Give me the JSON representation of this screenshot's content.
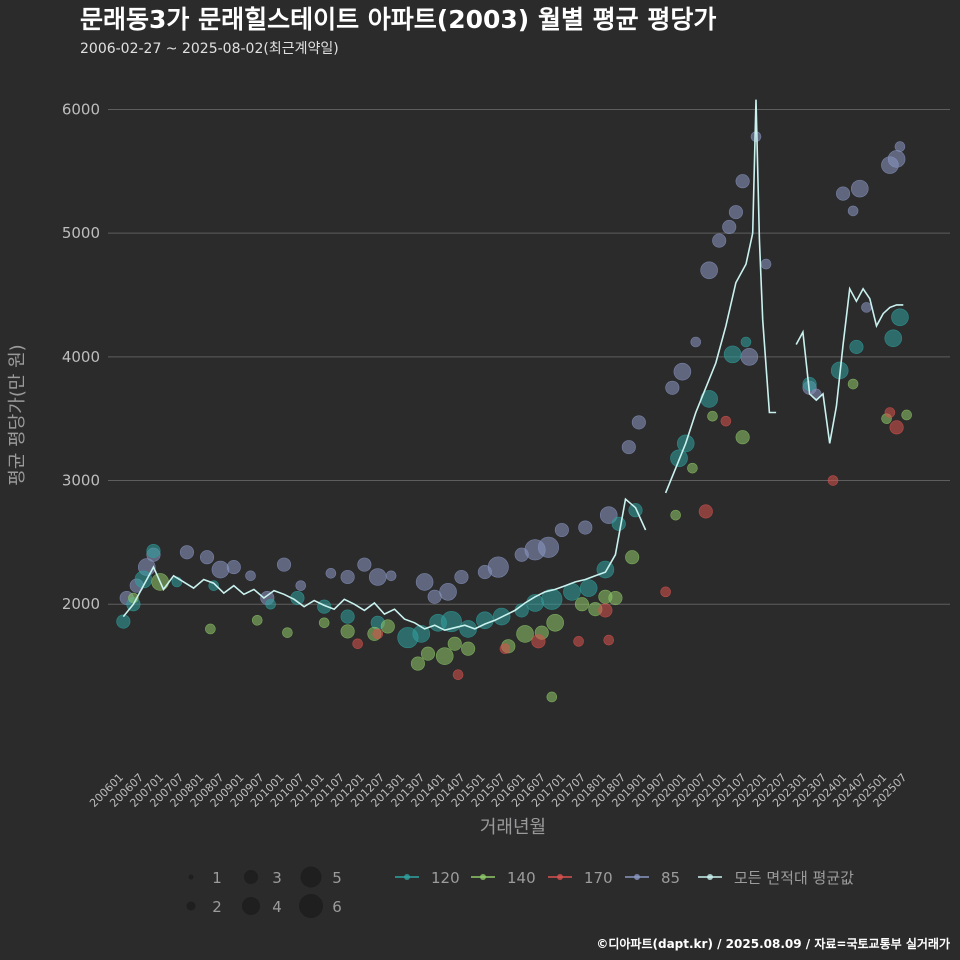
{
  "header": {
    "title": "문래동3가 문래힐스테이트 아파트(2003) 월별 평균 평당가",
    "subtitle": "2006-02-27 ~ 2025-08-02(최근계약일)"
  },
  "caption": "©디아파트(dapt.kr) / 2025.08.09 / 자료=국토교통부 실거래가",
  "colors": {
    "background": "#2b2b2c",
    "grid": "#5e5e5e",
    "s120": "#2fa3a0",
    "s140": "#8fc968",
    "s170": "#d9534f",
    "s85": "#8a97c2",
    "avg": "#c9f2ef"
  },
  "legend": {
    "size_labels": [
      "1",
      "2",
      "3",
      "4",
      "5",
      "6"
    ],
    "series_labels": [
      "120",
      "140",
      "170",
      "85",
      "모든 면적대 평균값"
    ]
  },
  "chart_data": {
    "type": "line",
    "xlabel": "거래년월",
    "ylabel": "평균 평당가(만 원)",
    "ylim": [
      700,
      6400
    ],
    "xlim": [
      "2006-01",
      "2025-09"
    ],
    "yticks": [
      2000,
      3000,
      4000,
      5000,
      6000
    ],
    "ytick_labels": [
      "2000",
      "3000",
      "4000",
      "5000",
      "6000"
    ],
    "xtick_labels": [
      "200601",
      "200607",
      "200701",
      "200707",
      "200801",
      "200807",
      "200901",
      "200907",
      "201001",
      "201007",
      "201101",
      "201107",
      "201201",
      "201207",
      "201301",
      "201307",
      "201401",
      "201407",
      "201501",
      "201507",
      "201601",
      "201607",
      "201701",
      "201707",
      "201801",
      "201807",
      "201901",
      "201907",
      "202001",
      "202007",
      "202101",
      "202107",
      "202201",
      "202207",
      "202301",
      "202307",
      "202401",
      "202407",
      "202501",
      "202507"
    ],
    "grid": true,
    "legend_position": "bottom",
    "average_line": {
      "name": "모든 면적대 평균값",
      "x": [
        "2006-02",
        "2006-05",
        "2006-08",
        "2006-11",
        "2007-02",
        "2007-05",
        "2007-08",
        "2007-11",
        "2008-02",
        "2008-05",
        "2008-08",
        "2008-11",
        "2009-02",
        "2009-05",
        "2009-08",
        "2009-11",
        "2010-02",
        "2010-05",
        "2010-08",
        "2010-11",
        "2011-02",
        "2011-05",
        "2011-08",
        "2011-11",
        "2012-02",
        "2012-05",
        "2012-08",
        "2012-11",
        "2013-02",
        "2013-05",
        "2013-08",
        "2013-11",
        "2014-02",
        "2014-05",
        "2014-08",
        "2014-11",
        "2015-02",
        "2015-05",
        "2015-08",
        "2015-11",
        "2016-02",
        "2016-05",
        "2016-08",
        "2016-11",
        "2017-02",
        "2017-05",
        "2017-08",
        "2017-11",
        "2018-02",
        "2018-05",
        "2018-08",
        "2018-11",
        "2019-02",
        "2019-05",
        "2019-08",
        "2019-11",
        "2020-02",
        "2020-05",
        "2020-08",
        "2020-11",
        "2021-02",
        "2021-05",
        "2021-08",
        "2021-10",
        "2021-11",
        "2021-12",
        "2022-01",
        "2022-03",
        "2022-05",
        "2022-06",
        "2022-11",
        "2023-01",
        "2023-03",
        "2023-05",
        "2023-07",
        "2023-09",
        "2023-11",
        "2024-01",
        "2024-03",
        "2024-05",
        "2024-07",
        "2024-09",
        "2024-11",
        "2025-01",
        "2025-03",
        "2025-05",
        "2025-07"
      ],
      "y": [
        1900,
        2000,
        2150,
        2300,
        2120,
        2230,
        2180,
        2130,
        2200,
        2170,
        2090,
        2150,
        2080,
        2120,
        2050,
        2110,
        2080,
        2040,
        1980,
        2030,
        1990,
        1960,
        2040,
        2000,
        1950,
        2010,
        1920,
        1960,
        1880,
        1850,
        1800,
        1830,
        1790,
        1810,
        1830,
        1800,
        1840,
        1870,
        1910,
        1950,
        2010,
        2060,
        2100,
        2120,
        2150,
        2180,
        2200,
        2230,
        2260,
        2400,
        2850,
        2780,
        2600,
        null,
        2900,
        3100,
        3300,
        3550,
        3750,
        3950,
        4250,
        4600,
        4750,
        5000,
        6080,
        4950,
        4300,
        3550,
        3550,
        null,
        4100,
        4200,
        3700,
        3650,
        3700,
        3300,
        3600,
        4100,
        4550,
        4450,
        4550,
        4470,
        4250,
        4350,
        4400,
        4420,
        4420
      ],
      "null_note": ""
    },
    "series": [
      {
        "name": "85",
        "color": "#8a97c2",
        "points": [
          {
            "x": "2006-03",
            "y": 2050,
            "s": 3
          },
          {
            "x": "2006-06",
            "y": 2150,
            "s": 3
          },
          {
            "x": "2006-09",
            "y": 2300,
            "s": 4
          },
          {
            "x": "2006-11",
            "y": 2400,
            "s": 3
          },
          {
            "x": "2007-09",
            "y": 2420,
            "s": 3
          },
          {
            "x": "2008-03",
            "y": 2380,
            "s": 3
          },
          {
            "x": "2008-07",
            "y": 2280,
            "s": 4
          },
          {
            "x": "2008-11",
            "y": 2300,
            "s": 3
          },
          {
            "x": "2009-04",
            "y": 2230,
            "s": 2
          },
          {
            "x": "2009-09",
            "y": 2050,
            "s": 3
          },
          {
            "x": "2010-02",
            "y": 2320,
            "s": 3
          },
          {
            "x": "2010-07",
            "y": 2150,
            "s": 2
          },
          {
            "x": "2011-04",
            "y": 2250,
            "s": 2
          },
          {
            "x": "2011-09",
            "y": 2220,
            "s": 3
          },
          {
            "x": "2012-02",
            "y": 2320,
            "s": 3
          },
          {
            "x": "2012-06",
            "y": 2220,
            "s": 4
          },
          {
            "x": "2012-10",
            "y": 2230,
            "s": 2
          },
          {
            "x": "2013-08",
            "y": 2180,
            "s": 4
          },
          {
            "x": "2013-11",
            "y": 2060,
            "s": 3
          },
          {
            "x": "2014-03",
            "y": 2100,
            "s": 4
          },
          {
            "x": "2014-07",
            "y": 2220,
            "s": 3
          },
          {
            "x": "2015-02",
            "y": 2260,
            "s": 3
          },
          {
            "x": "2015-06",
            "y": 2300,
            "s": 5
          },
          {
            "x": "2016-01",
            "y": 2400,
            "s": 3
          },
          {
            "x": "2016-05",
            "y": 2440,
            "s": 5
          },
          {
            "x": "2016-09",
            "y": 2460,
            "s": 5
          },
          {
            "x": "2017-01",
            "y": 2600,
            "s": 3
          },
          {
            "x": "2017-08",
            "y": 2620,
            "s": 3
          },
          {
            "x": "2018-03",
            "y": 2720,
            "s": 4
          },
          {
            "x": "2018-09",
            "y": 3270,
            "s": 3
          },
          {
            "x": "2018-12",
            "y": 3470,
            "s": 3
          },
          {
            "x": "2019-10",
            "y": 3750,
            "s": 3
          },
          {
            "x": "2020-01",
            "y": 3880,
            "s": 4
          },
          {
            "x": "2020-05",
            "y": 4120,
            "s": 2
          },
          {
            "x": "2020-09",
            "y": 4700,
            "s": 4
          },
          {
            "x": "2020-12",
            "y": 4940,
            "s": 3
          },
          {
            "x": "2021-03",
            "y": 5050,
            "s": 3
          },
          {
            "x": "2021-05",
            "y": 5170,
            "s": 3
          },
          {
            "x": "2021-07",
            "y": 5420,
            "s": 3
          },
          {
            "x": "2021-09",
            "y": 4000,
            "s": 4
          },
          {
            "x": "2021-11",
            "y": 5780,
            "s": 2
          },
          {
            "x": "2022-02",
            "y": 4750,
            "s": 2
          },
          {
            "x": "2024-01",
            "y": 5320,
            "s": 3
          },
          {
            "x": "2024-04",
            "y": 5180,
            "s": 2
          },
          {
            "x": "2024-06",
            "y": 5360,
            "s": 4
          },
          {
            "x": "2024-08",
            "y": 4400,
            "s": 2
          },
          {
            "x": "2025-03",
            "y": 5550,
            "s": 4
          },
          {
            "x": "2025-05",
            "y": 5600,
            "s": 4
          },
          {
            "x": "2025-06",
            "y": 5700,
            "s": 2
          },
          {
            "x": "2023-03",
            "y": 3750,
            "s": 3
          },
          {
            "x": "2023-05",
            "y": 3700,
            "s": 2
          }
        ]
      },
      {
        "name": "120",
        "color": "#2fa3a0",
        "points": [
          {
            "x": "2006-02",
            "y": 1860,
            "s": 3
          },
          {
            "x": "2006-05",
            "y": 2000,
            "s": 3
          },
          {
            "x": "2006-08",
            "y": 2200,
            "s": 4
          },
          {
            "x": "2006-11",
            "y": 2430,
            "s": 3
          },
          {
            "x": "2007-06",
            "y": 2180,
            "s": 2
          },
          {
            "x": "2008-05",
            "y": 2150,
            "s": 2
          },
          {
            "x": "2009-10",
            "y": 2000,
            "s": 2
          },
          {
            "x": "2010-06",
            "y": 2050,
            "s": 3
          },
          {
            "x": "2011-02",
            "y": 1980,
            "s": 3
          },
          {
            "x": "2011-09",
            "y": 1900,
            "s": 3
          },
          {
            "x": "2012-06",
            "y": 1850,
            "s": 3
          },
          {
            "x": "2013-03",
            "y": 1730,
            "s": 5
          },
          {
            "x": "2013-07",
            "y": 1760,
            "s": 4
          },
          {
            "x": "2013-12",
            "y": 1850,
            "s": 4
          },
          {
            "x": "2014-04",
            "y": 1860,
            "s": 5
          },
          {
            "x": "2014-09",
            "y": 1800,
            "s": 4
          },
          {
            "x": "2015-02",
            "y": 1870,
            "s": 4
          },
          {
            "x": "2015-07",
            "y": 1900,
            "s": 4
          },
          {
            "x": "2016-01",
            "y": 1950,
            "s": 3
          },
          {
            "x": "2016-05",
            "y": 2010,
            "s": 4
          },
          {
            "x": "2016-10",
            "y": 2040,
            "s": 5
          },
          {
            "x": "2017-04",
            "y": 2100,
            "s": 4
          },
          {
            "x": "2017-09",
            "y": 2130,
            "s": 4
          },
          {
            "x": "2018-02",
            "y": 2280,
            "s": 4
          },
          {
            "x": "2018-06",
            "y": 2650,
            "s": 3
          },
          {
            "x": "2018-11",
            "y": 2760,
            "s": 3
          },
          {
            "x": "2019-12",
            "y": 3180,
            "s": 4
          },
          {
            "x": "2020-02",
            "y": 3300,
            "s": 4
          },
          {
            "x": "2020-09",
            "y": 3660,
            "s": 4
          },
          {
            "x": "2021-04",
            "y": 4020,
            "s": 4
          },
          {
            "x": "2021-08",
            "y": 4120,
            "s": 2
          },
          {
            "x": "2023-03",
            "y": 3780,
            "s": 3
          },
          {
            "x": "2023-12",
            "y": 3890,
            "s": 4
          },
          {
            "x": "2024-05",
            "y": 4080,
            "s": 3
          },
          {
            "x": "2025-04",
            "y": 4150,
            "s": 4
          },
          {
            "x": "2025-06",
            "y": 4320,
            "s": 4
          }
        ]
      },
      {
        "name": "140",
        "color": "#8fc968",
        "points": [
          {
            "x": "2006-05",
            "y": 2050,
            "s": 2
          },
          {
            "x": "2007-01",
            "y": 2180,
            "s": 4
          },
          {
            "x": "2008-04",
            "y": 1800,
            "s": 2
          },
          {
            "x": "2009-06",
            "y": 1870,
            "s": 2
          },
          {
            "x": "2010-03",
            "y": 1770,
            "s": 2
          },
          {
            "x": "2011-02",
            "y": 1850,
            "s": 2
          },
          {
            "x": "2011-09",
            "y": 1780,
            "s": 3
          },
          {
            "x": "2012-05",
            "y": 1760,
            "s": 3
          },
          {
            "x": "2012-09",
            "y": 1820,
            "s": 3
          },
          {
            "x": "2013-06",
            "y": 1520,
            "s": 3
          },
          {
            "x": "2013-09",
            "y": 1600,
            "s": 3
          },
          {
            "x": "2014-02",
            "y": 1580,
            "s": 4
          },
          {
            "x": "2014-05",
            "y": 1680,
            "s": 3
          },
          {
            "x": "2014-09",
            "y": 1640,
            "s": 3
          },
          {
            "x": "2015-09",
            "y": 1660,
            "s": 3
          },
          {
            "x": "2016-02",
            "y": 1760,
            "s": 4
          },
          {
            "x": "2016-07",
            "y": 1770,
            "s": 3
          },
          {
            "x": "2016-10",
            "y": 1250,
            "s": 2
          },
          {
            "x": "2016-11",
            "y": 1850,
            "s": 4
          },
          {
            "x": "2017-07",
            "y": 2000,
            "s": 3
          },
          {
            "x": "2017-11",
            "y": 1960,
            "s": 3
          },
          {
            "x": "2018-02",
            "y": 2060,
            "s": 3
          },
          {
            "x": "2018-05",
            "y": 2050,
            "s": 3
          },
          {
            "x": "2018-10",
            "y": 2380,
            "s": 3
          },
          {
            "x": "2019-11",
            "y": 2720,
            "s": 2
          },
          {
            "x": "2020-04",
            "y": 3100,
            "s": 2
          },
          {
            "x": "2020-10",
            "y": 3520,
            "s": 2
          },
          {
            "x": "2021-07",
            "y": 3350,
            "s": 3
          },
          {
            "x": "2024-04",
            "y": 3780,
            "s": 2
          },
          {
            "x": "2025-02",
            "y": 3500,
            "s": 2
          },
          {
            "x": "2025-08",
            "y": 3530,
            "s": 2
          }
        ]
      },
      {
        "name": "170",
        "color": "#d9534f",
        "points": [
          {
            "x": "2011-12",
            "y": 1680,
            "s": 2
          },
          {
            "x": "2012-06",
            "y": 1760,
            "s": 2
          },
          {
            "x": "2014-06",
            "y": 1430,
            "s": 2
          },
          {
            "x": "2015-08",
            "y": 1640,
            "s": 2
          },
          {
            "x": "2016-06",
            "y": 1700,
            "s": 3
          },
          {
            "x": "2017-06",
            "y": 1700,
            "s": 2
          },
          {
            "x": "2018-02",
            "y": 1950,
            "s": 3
          },
          {
            "x": "2018-03",
            "y": 1710,
            "s": 2
          },
          {
            "x": "2019-08",
            "y": 2100,
            "s": 2
          },
          {
            "x": "2020-08",
            "y": 2750,
            "s": 3
          },
          {
            "x": "2021-02",
            "y": 3480,
            "s": 2
          },
          {
            "x": "2023-10",
            "y": 3000,
            "s": 2
          },
          {
            "x": "2025-03",
            "y": 3550,
            "s": 2
          },
          {
            "x": "2025-05",
            "y": 3430,
            "s": 3
          }
        ]
      }
    ]
  }
}
